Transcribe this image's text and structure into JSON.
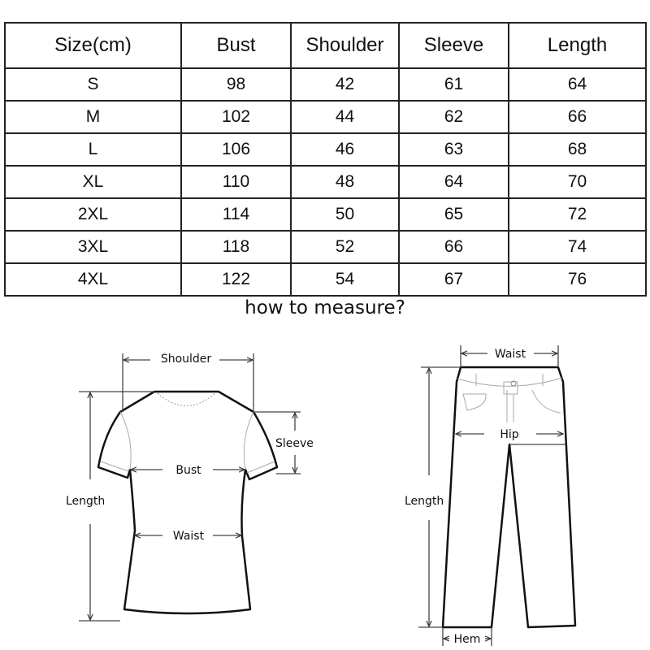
{
  "table": {
    "headers": [
      "Size(cm)",
      "Bust",
      "Shoulder",
      "Sleeve",
      "Length"
    ],
    "rows": [
      [
        "S",
        "98",
        "42",
        "61",
        "64"
      ],
      [
        "M",
        "102",
        "44",
        "62",
        "66"
      ],
      [
        "L",
        "106",
        "46",
        "63",
        "68"
      ],
      [
        "XL",
        "110",
        "48",
        "64",
        "70"
      ],
      [
        "2XL",
        "114",
        "50",
        "65",
        "72"
      ],
      [
        "3XL",
        "118",
        "52",
        "66",
        "74"
      ],
      [
        "4XL",
        "122",
        "54",
        "67",
        "76"
      ]
    ]
  },
  "title": "how to measure?",
  "shirt": {
    "shoulder": "Shoulder",
    "sleeve": "Sleeve",
    "bust": "Bust",
    "length": "Length",
    "waist": "Waist"
  },
  "pants": {
    "waist": "Waist",
    "hip": "Hip",
    "length": "Length",
    "hem": "Hem"
  }
}
